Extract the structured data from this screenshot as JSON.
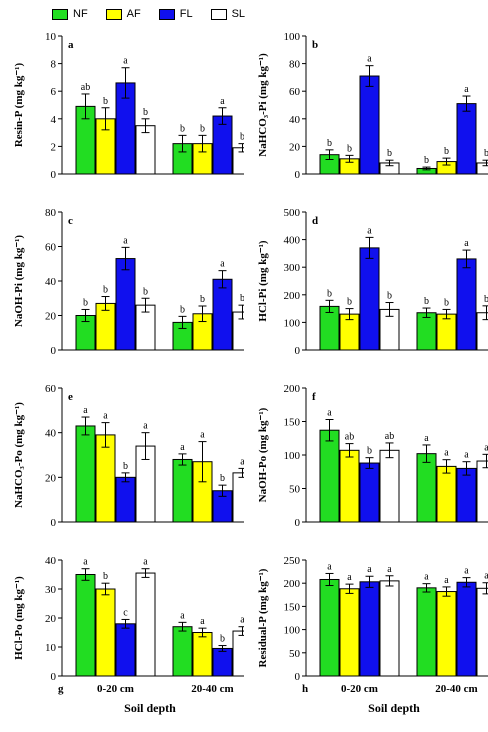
{
  "legend": [
    {
      "label": "NF",
      "color": "#22dd22"
    },
    {
      "label": "AF",
      "color": "#ffff00"
    },
    {
      "label": "FL",
      "color": "#1010ee"
    },
    {
      "label": "SL",
      "color": "#ffffff"
    }
  ],
  "chart_data": [
    {
      "type": "bar",
      "panel": "a",
      "ylabel": "Resin-P (mg kg⁻¹)",
      "ylim": [
        0,
        10
      ],
      "yticks": [
        0,
        2,
        4,
        6,
        8,
        10
      ],
      "categories": [
        "0-20 cm",
        "20-40 cm"
      ],
      "xlabel": "",
      "show_xticklabels": false,
      "series": [
        {
          "name": "NF",
          "values": [
            4.9,
            2.2
          ],
          "errors": [
            0.9,
            0.6
          ],
          "letters": [
            "ab",
            "b"
          ]
        },
        {
          "name": "AF",
          "values": [
            4.0,
            2.2
          ],
          "errors": [
            0.8,
            0.6
          ],
          "letters": [
            "b",
            "b"
          ]
        },
        {
          "name": "FL",
          "values": [
            6.6,
            4.2
          ],
          "errors": [
            1.1,
            0.6
          ],
          "letters": [
            "a",
            "a"
          ]
        },
        {
          "name": "SL",
          "values": [
            3.5,
            1.9
          ],
          "errors": [
            0.5,
            0.3
          ],
          "letters": [
            "b",
            "b"
          ]
        }
      ]
    },
    {
      "type": "bar",
      "panel": "b",
      "ylabel": "NaHCO₃-Pi (mg kg⁻¹)",
      "ylim": [
        0,
        100
      ],
      "yticks": [
        0,
        20,
        40,
        60,
        80,
        100
      ],
      "categories": [
        "0-20 cm",
        "20-40 cm"
      ],
      "xlabel": "",
      "show_xticklabels": false,
      "series": [
        {
          "name": "NF",
          "values": [
            14,
            4
          ],
          "errors": [
            3.5,
            1
          ],
          "letters": [
            "b",
            "b"
          ]
        },
        {
          "name": "AF",
          "values": [
            11,
            9
          ],
          "errors": [
            2.5,
            2.5
          ],
          "letters": [
            "b",
            "b"
          ]
        },
        {
          "name": "FL",
          "values": [
            71,
            51
          ],
          "errors": [
            7.5,
            5.5
          ],
          "letters": [
            "a",
            "a"
          ]
        },
        {
          "name": "SL",
          "values": [
            8,
            8
          ],
          "errors": [
            2,
            2
          ],
          "letters": [
            "b",
            "b"
          ]
        }
      ]
    },
    {
      "type": "bar",
      "panel": "c",
      "ylabel": "NaOH-Pi (mg kg⁻¹)",
      "ylim": [
        0,
        80
      ],
      "yticks": [
        0,
        20,
        40,
        60,
        80
      ],
      "categories": [
        "0-20 cm",
        "20-40 cm"
      ],
      "xlabel": "",
      "show_xticklabels": false,
      "series": [
        {
          "name": "NF",
          "values": [
            20,
            16
          ],
          "errors": [
            3.5,
            3.5
          ],
          "letters": [
            "b",
            "b"
          ]
        },
        {
          "name": "AF",
          "values": [
            27,
            21
          ],
          "errors": [
            4,
            4.5
          ],
          "letters": [
            "b",
            "b"
          ]
        },
        {
          "name": "FL",
          "values": [
            53,
            41
          ],
          "errors": [
            6.5,
            5
          ],
          "letters": [
            "a",
            "a"
          ]
        },
        {
          "name": "SL",
          "values": [
            26,
            22
          ],
          "errors": [
            4,
            4
          ],
          "letters": [
            "b",
            "b"
          ]
        }
      ]
    },
    {
      "type": "bar",
      "panel": "d",
      "ylabel": "HCl-Pi (mg kg⁻¹)",
      "ylim": [
        0,
        500
      ],
      "yticks": [
        0,
        100,
        200,
        300,
        400,
        500
      ],
      "categories": [
        "0-20 cm",
        "20-40 cm"
      ],
      "xlabel": "",
      "show_xticklabels": false,
      "series": [
        {
          "name": "NF",
          "values": [
            158,
            135
          ],
          "errors": [
            22,
            17
          ],
          "letters": [
            "b",
            "b"
          ]
        },
        {
          "name": "AF",
          "values": [
            130,
            130
          ],
          "errors": [
            20,
            17
          ],
          "letters": [
            "b",
            "b"
          ]
        },
        {
          "name": "FL",
          "values": [
            370,
            330
          ],
          "errors": [
            38,
            32
          ],
          "letters": [
            "a",
            "a"
          ]
        },
        {
          "name": "SL",
          "values": [
            147,
            135
          ],
          "errors": [
            25,
            25
          ],
          "letters": [
            "b",
            "b"
          ]
        }
      ]
    },
    {
      "type": "bar",
      "panel": "e",
      "ylabel": "NaHCO₃-Po (mg kg⁻¹)",
      "ylim": [
        0,
        60
      ],
      "yticks": [
        0,
        20,
        40,
        60
      ],
      "categories": [
        "0-20 cm",
        "20-40 cm"
      ],
      "xlabel": "",
      "show_xticklabels": false,
      "series": [
        {
          "name": "NF",
          "values": [
            43,
            28
          ],
          "errors": [
            4,
            2.5
          ],
          "letters": [
            "a",
            "a"
          ]
        },
        {
          "name": "AF",
          "values": [
            39,
            27
          ],
          "errors": [
            5.5,
            9
          ],
          "letters": [
            "a",
            "a"
          ]
        },
        {
          "name": "FL",
          "values": [
            20,
            14
          ],
          "errors": [
            2,
            2.5
          ],
          "letters": [
            "b",
            "b"
          ]
        },
        {
          "name": "SL",
          "values": [
            34,
            22
          ],
          "errors": [
            6,
            2
          ],
          "letters": [
            "a",
            "a"
          ]
        }
      ]
    },
    {
      "type": "bar",
      "panel": "f",
      "ylabel": "NaOH-Po (mg kg⁻¹)",
      "ylim": [
        0,
        200
      ],
      "yticks": [
        0,
        50,
        100,
        150,
        200
      ],
      "categories": [
        "0-20 cm",
        "20-40 cm"
      ],
      "xlabel": "",
      "show_xticklabels": false,
      "series": [
        {
          "name": "NF",
          "values": [
            137,
            102
          ],
          "errors": [
            16,
            13
          ],
          "letters": [
            "a",
            "a"
          ]
        },
        {
          "name": "AF",
          "values": [
            107,
            83
          ],
          "errors": [
            10,
            10
          ],
          "letters": [
            "ab",
            "a"
          ]
        },
        {
          "name": "FL",
          "values": [
            88,
            80
          ],
          "errors": [
            8,
            10
          ],
          "letters": [
            "b",
            "a"
          ]
        },
        {
          "name": "SL",
          "values": [
            107,
            91
          ],
          "errors": [
            11,
            10
          ],
          "letters": [
            "ab",
            "a"
          ]
        }
      ]
    },
    {
      "type": "bar",
      "panel": "g",
      "ylabel": "HCl-Po (mg kg⁻¹)",
      "ylim": [
        0,
        40
      ],
      "yticks": [
        0,
        10,
        20,
        30,
        40
      ],
      "categories": [
        "0-20 cm",
        "20-40 cm"
      ],
      "xlabel": "Soil depth",
      "show_xticklabels": true,
      "series": [
        {
          "name": "NF",
          "values": [
            35,
            17
          ],
          "errors": [
            2,
            1.5
          ],
          "letters": [
            "a",
            "a"
          ]
        },
        {
          "name": "AF",
          "values": [
            30,
            15
          ],
          "errors": [
            2,
            1.5
          ],
          "letters": [
            "b",
            "a"
          ]
        },
        {
          "name": "FL",
          "values": [
            18,
            9.5
          ],
          "errors": [
            1.5,
            1
          ],
          "letters": [
            "c",
            "b"
          ]
        },
        {
          "name": "SL",
          "values": [
            35.5,
            15.5
          ],
          "errors": [
            1.5,
            1.5
          ],
          "letters": [
            "a",
            "a"
          ]
        }
      ]
    },
    {
      "type": "bar",
      "panel": "h",
      "ylabel": "Residual-P (mg kg⁻¹)",
      "ylim": [
        0,
        250
      ],
      "yticks": [
        0,
        50,
        100,
        150,
        200,
        250
      ],
      "categories": [
        "0-20 cm",
        "20-40 cm"
      ],
      "xlabel": "Soil depth",
      "show_xticklabels": true,
      "series": [
        {
          "name": "NF",
          "values": [
            208,
            190
          ],
          "errors": [
            13,
            9
          ],
          "letters": [
            "a",
            "a"
          ]
        },
        {
          "name": "AF",
          "values": [
            188,
            182
          ],
          "errors": [
            10,
            10
          ],
          "letters": [
            "a",
            "a"
          ]
        },
        {
          "name": "FL",
          "values": [
            203,
            202
          ],
          "errors": [
            12,
            10
          ],
          "letters": [
            "a",
            "a"
          ]
        },
        {
          "name": "SL",
          "values": [
            205,
            189
          ],
          "errors": [
            11,
            12
          ],
          "letters": [
            "a",
            "a"
          ]
        }
      ]
    }
  ]
}
